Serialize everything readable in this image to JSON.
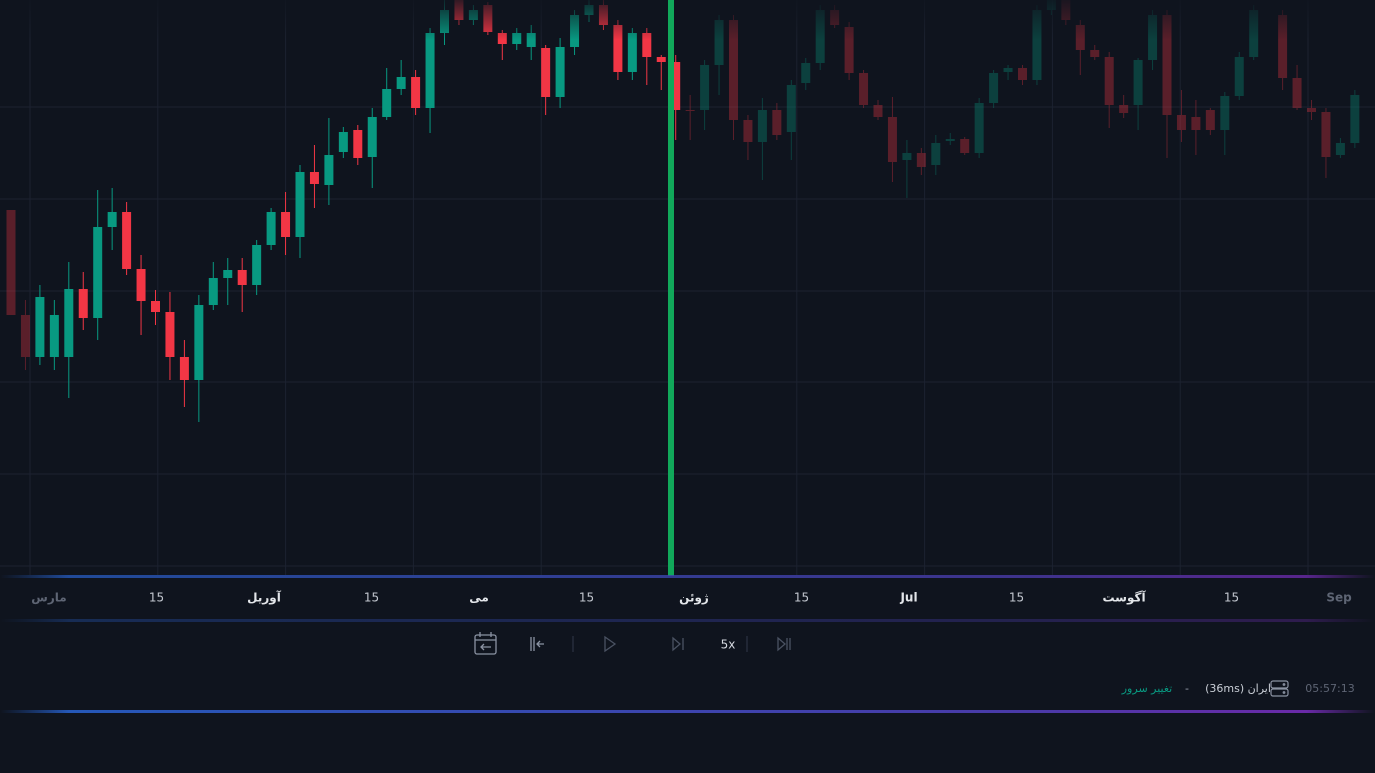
{
  "chart_data": {
    "type": "candlestick",
    "ylim": [
      0,
      580
    ],
    "up_color": "#089981",
    "down_color": "#f23645",
    "ohlc": [
      [
        370,
        370,
        265,
        265
      ],
      [
        265,
        280,
        210,
        223
      ],
      [
        223,
        295,
        215,
        283
      ],
      [
        223,
        280,
        210,
        265
      ],
      [
        223,
        318,
        182,
        291
      ],
      [
        291,
        308,
        250,
        262
      ],
      [
        262,
        390,
        240,
        353
      ],
      [
        353,
        392,
        330,
        368
      ],
      [
        368,
        378,
        305,
        311
      ],
      [
        311,
        325,
        245,
        279
      ],
      [
        279,
        290,
        255,
        268
      ],
      [
        268,
        288,
        200,
        223
      ],
      [
        223,
        240,
        173,
        200
      ],
      [
        200,
        285,
        158,
        275
      ],
      [
        275,
        318,
        270,
        302
      ],
      [
        302,
        322,
        275,
        310
      ],
      [
        310,
        322,
        268,
        295
      ],
      [
        295,
        340,
        285,
        335
      ],
      [
        335,
        372,
        330,
        368
      ],
      [
        368,
        388,
        325,
        343
      ],
      [
        343,
        415,
        322,
        408
      ],
      [
        408,
        435,
        372,
        396
      ],
      [
        395,
        462,
        375,
        425
      ],
      [
        428,
        453,
        422,
        448
      ],
      [
        450,
        455,
        415,
        422
      ],
      [
        423,
        472,
        392,
        463
      ],
      [
        463,
        512,
        460,
        491
      ],
      [
        491,
        520,
        485,
        503
      ],
      [
        503,
        510,
        465,
        472
      ],
      [
        472,
        552,
        447,
        547
      ],
      [
        547,
        580,
        535,
        570
      ],
      [
        580,
        580,
        555,
        560
      ],
      [
        560,
        575,
        555,
        570
      ],
      [
        575,
        578,
        545,
        548
      ],
      [
        547,
        550,
        520,
        536
      ],
      [
        536,
        552,
        530,
        547
      ],
      [
        533,
        555,
        520,
        547
      ],
      [
        532,
        535,
        465,
        483
      ],
      [
        483,
        542,
        472,
        533
      ],
      [
        533,
        570,
        525,
        565
      ],
      [
        565,
        580,
        558,
        575
      ],
      [
        575,
        580,
        550,
        555
      ],
      [
        555,
        560,
        500,
        508
      ],
      [
        508,
        552,
        500,
        547
      ],
      [
        547,
        552,
        495,
        523
      ],
      [
        523,
        525,
        490,
        518
      ],
      [
        518,
        525,
        440,
        470
      ],
      [
        470,
        485,
        440,
        469
      ],
      [
        470,
        520,
        450,
        515
      ],
      [
        515,
        565,
        485,
        560
      ],
      [
        560,
        565,
        440,
        460
      ],
      [
        460,
        465,
        420,
        438
      ],
      [
        438,
        482,
        400,
        470
      ],
      [
        470,
        477,
        440,
        445
      ],
      [
        448,
        500,
        420,
        495
      ],
      [
        497,
        522,
        490,
        517
      ],
      [
        517,
        575,
        510,
        570
      ],
      [
        570,
        575,
        552,
        555
      ],
      [
        553,
        558,
        500,
        507
      ],
      [
        507,
        510,
        472,
        475
      ],
      [
        475,
        480,
        460,
        463
      ],
      [
        463,
        483,
        398,
        418
      ],
      [
        420,
        440,
        382,
        427
      ],
      [
        427,
        432,
        405,
        413
      ],
      [
        415,
        445,
        405,
        437
      ],
      [
        439,
        447,
        435,
        441
      ],
      [
        441,
        443,
        425,
        427
      ],
      [
        427,
        482,
        422,
        477
      ],
      [
        477,
        510,
        472,
        507
      ],
      [
        508,
        515,
        500,
        512
      ],
      [
        512,
        515,
        495,
        500
      ],
      [
        500,
        575,
        495,
        570
      ],
      [
        570,
        580,
        565,
        580
      ],
      [
        580,
        580,
        555,
        560
      ],
      [
        555,
        560,
        505,
        530
      ],
      [
        530,
        535,
        520,
        523
      ],
      [
        523,
        528,
        452,
        475
      ],
      [
        475,
        485,
        462,
        467
      ],
      [
        475,
        522,
        450,
        520
      ],
      [
        520,
        570,
        510,
        565
      ],
      [
        565,
        570,
        422,
        465
      ],
      [
        465,
        490,
        438,
        450
      ],
      [
        463,
        480,
        425,
        450
      ],
      [
        470,
        472,
        445,
        450
      ],
      [
        450,
        488,
        425,
        484
      ],
      [
        484,
        528,
        480,
        523
      ],
      [
        523,
        575,
        520,
        570
      ],
      null,
      [
        565,
        570,
        490,
        502
      ],
      [
        502,
        515,
        470,
        472
      ],
      [
        472,
        480,
        460,
        468
      ],
      [
        468,
        472,
        402,
        423
      ],
      [
        425,
        442,
        422,
        437
      ],
      [
        437,
        490,
        432,
        485
      ]
    ],
    "time_labels": [
      "مارس",
      "15",
      "آوریل",
      "15",
      "می",
      "15",
      "ژوئن",
      "15",
      "Jul",
      "15",
      "آگوست",
      "15",
      "Sep"
    ]
  },
  "controls": {
    "speed": "5x"
  },
  "status": {
    "change_server": "تغییر سرور",
    "separator": "-",
    "server": "ایران (36ms)",
    "time": "05:57:13"
  }
}
